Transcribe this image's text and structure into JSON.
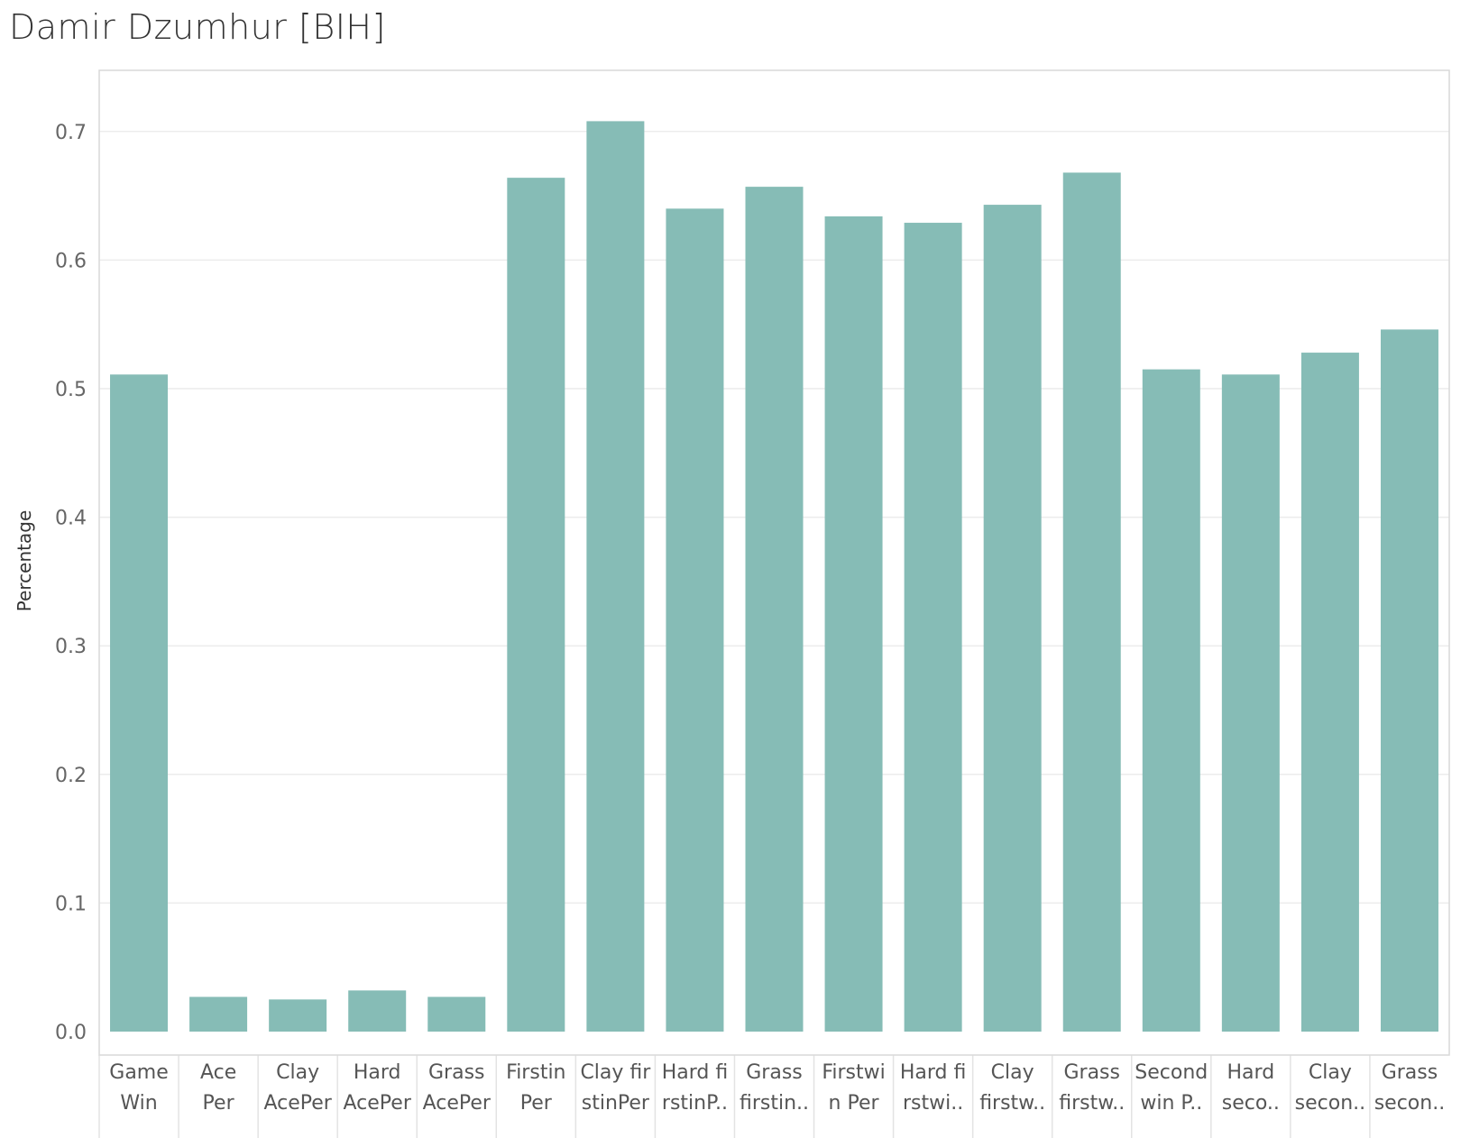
{
  "title": "Damir Dzumhur [BIH]",
  "chart_data": {
    "type": "bar",
    "title": "Damir Dzumhur [BIH]",
    "xlabel": "",
    "ylabel": "Percentage",
    "ylim": [
      0,
      0.74
    ],
    "yticks": [
      "0.0",
      "0.1",
      "0.2",
      "0.3",
      "0.4",
      "0.5",
      "0.6",
      "0.7"
    ],
    "grid": true,
    "color": "#86bcb6",
    "categories": [
      [
        "Game",
        "Win"
      ],
      [
        "Ace",
        "Per"
      ],
      [
        "Clay",
        "AcePer"
      ],
      [
        "Hard",
        "AcePer"
      ],
      [
        "Grass",
        "AcePer"
      ],
      [
        "Firstin",
        "Per"
      ],
      [
        "Clay fir",
        "stinPer"
      ],
      [
        "Hard fi",
        "rstinP.."
      ],
      [
        "Grass",
        "firstin.."
      ],
      [
        "Firstwi",
        "n Per"
      ],
      [
        "Hard fi",
        "rstwi.."
      ],
      [
        "Clay",
        "firstw.."
      ],
      [
        "Grass",
        "firstw.."
      ],
      [
        "Second",
        "win P.."
      ],
      [
        "Hard",
        "seco.."
      ],
      [
        "Clay",
        "secon.."
      ],
      [
        "Grass",
        "secon.."
      ]
    ],
    "values": [
      0.511,
      0.027,
      0.025,
      0.032,
      0.027,
      0.664,
      0.708,
      0.64,
      0.657,
      0.634,
      0.629,
      0.643,
      0.668,
      0.515,
      0.511,
      0.528,
      0.546
    ]
  }
}
